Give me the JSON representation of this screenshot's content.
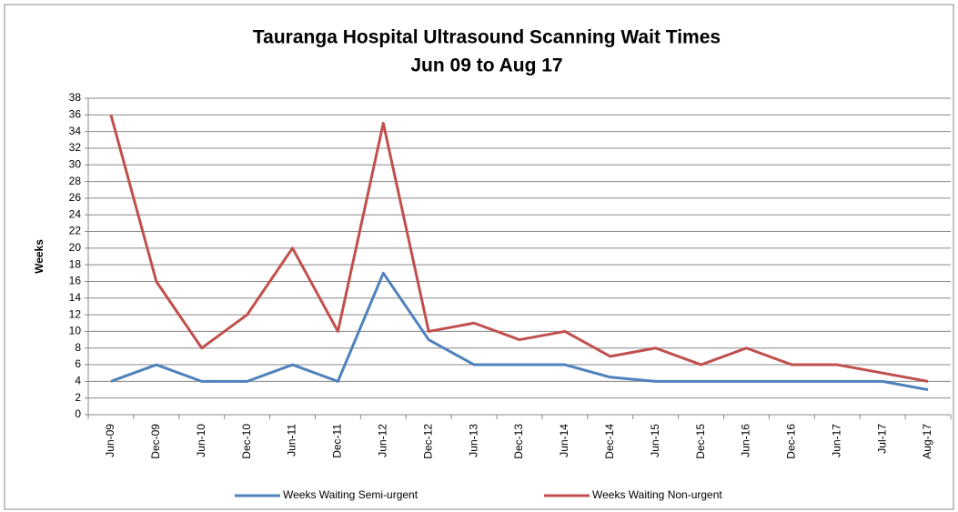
{
  "chart_data": {
    "type": "line",
    "title": "Tauranga Hospital Ultrasound Scanning Wait Times",
    "subtitle": "Jun 09 to Aug 17",
    "y_label": "Weeks",
    "categories": [
      "Jun-09",
      "Dec-09",
      "Jun-10",
      "Dec-10",
      "Jun-11",
      "Dec-11",
      "Jun-12",
      "Dec-12",
      "Jun-13",
      "Dec-13",
      "Jun-14",
      "Dec-14",
      "Jun-15",
      "Dec-15",
      "Jun-16",
      "Dec-16",
      "Jun-17",
      "Jul-17",
      "Aug-17"
    ],
    "series": [
      {
        "name": "Weeks Waiting Semi-urgent",
        "color": "#4f81bd",
        "values": [
          4,
          6,
          4,
          4,
          6,
          4,
          17,
          9,
          6,
          6,
          6,
          4.5,
          4,
          4,
          4,
          4,
          4,
          4,
          3
        ]
      },
      {
        "name": "Weeks Waiting Non-urgent",
        "color": "#c0504d",
        "values": [
          36,
          16,
          8,
          12,
          20,
          10,
          35,
          10,
          11,
          9,
          10,
          7,
          8,
          6,
          8,
          6,
          6,
          5,
          4
        ]
      }
    ],
    "ylim": [
      0,
      38
    ],
    "yticks": [
      0,
      2,
      4,
      6,
      8,
      10,
      12,
      14,
      16,
      18,
      20,
      22,
      24,
      26,
      28,
      30,
      32,
      34,
      36,
      38
    ],
    "grid": true,
    "legend": "bottom"
  }
}
